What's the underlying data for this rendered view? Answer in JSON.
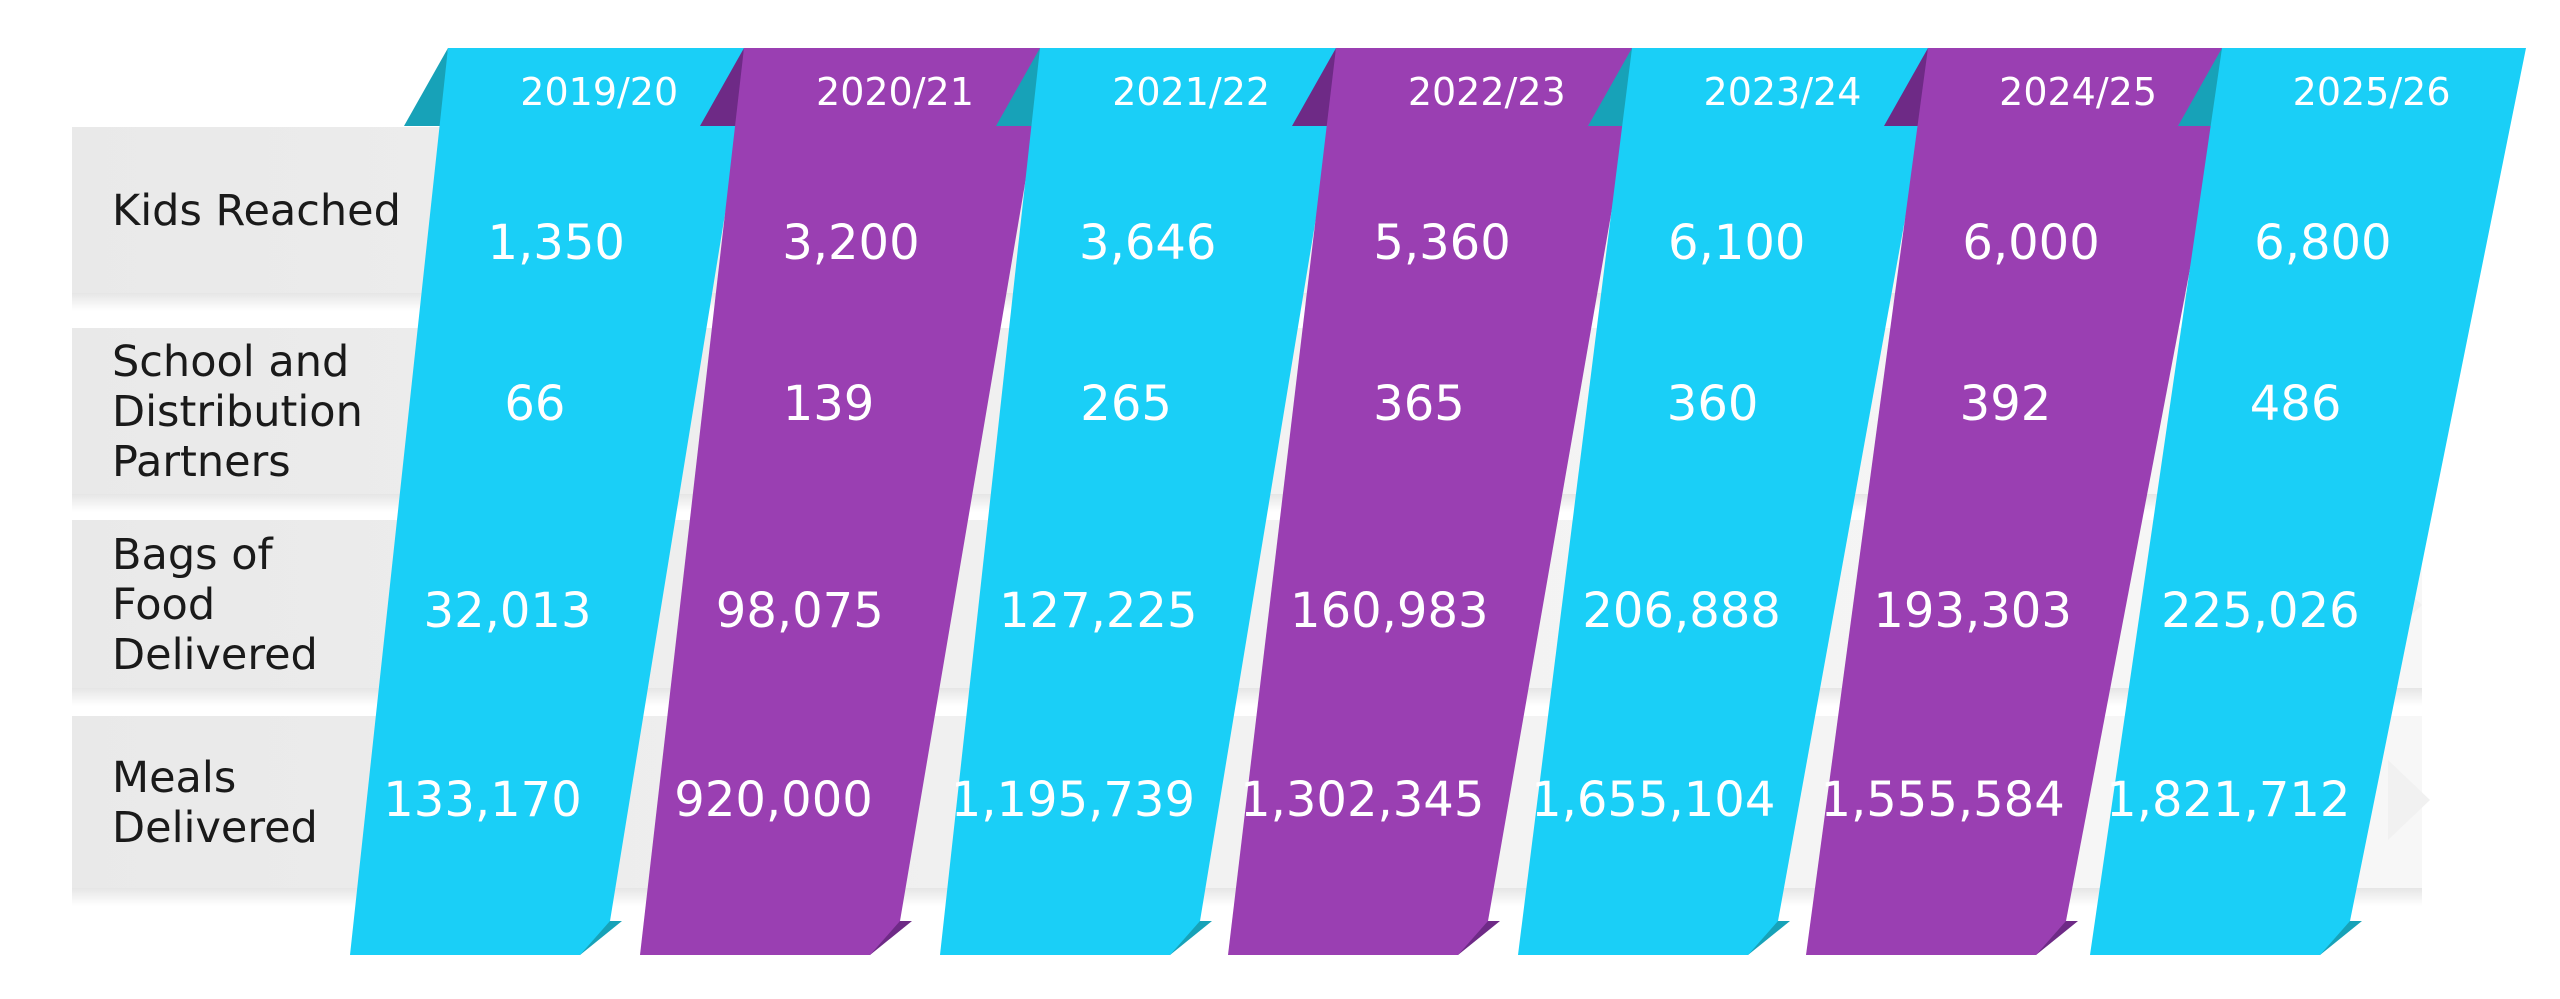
{
  "chart_data": {
    "type": "table",
    "title": "",
    "columns": [
      "2019/20",
      "2020/21",
      "2021/22",
      "2022/23",
      "2023/24",
      "2024/25",
      "2025/26"
    ],
    "rows": [
      {
        "label": "Kids Reached",
        "label_lines": [
          "Kids Reached"
        ],
        "values": [
          "1,350",
          "3,200",
          "3,646",
          "5,360",
          "6,100",
          "6,000",
          "6,800"
        ]
      },
      {
        "label": "School and Distribution Partners",
        "label_lines": [
          "School and",
          "Distribution",
          "Partners"
        ],
        "values": [
          "66",
          "139",
          "265",
          "365",
          "360",
          "392",
          "486"
        ]
      },
      {
        "label": "Bags of Food Delivered",
        "label_lines": [
          "Bags of",
          "Food",
          "Delivered"
        ],
        "values": [
          "32,013",
          "98,075",
          "127,225",
          "160,983",
          "206,888",
          "193,303",
          "225,026"
        ]
      },
      {
        "label": "Meals Delivered",
        "label_lines": [
          "Meals",
          "Delivered"
        ],
        "values": [
          "133,170",
          "920,000",
          "1,195,739",
          "1,302,345",
          "1,655,104",
          "1,555,584",
          "1,821,712"
        ]
      }
    ],
    "colors": {
      "cyan": "#1ACFF7",
      "cyan_fold": "#17A2B8",
      "purple": "#9A3FB2",
      "purple_fold": "#6E2A86",
      "row_band": "#EDEDED",
      "row_label": "#1A1A1A",
      "value_text": "#FFFFFF"
    }
  }
}
